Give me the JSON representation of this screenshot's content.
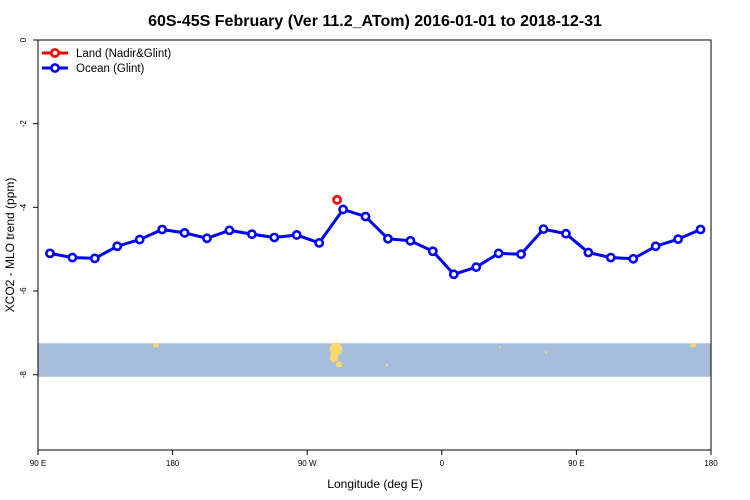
{
  "chart_data": {
    "type": "line",
    "title": "60S-45S February (Ver 11.2_ATom)   2016-01-01 to 2018-12-31",
    "xlabel": "Longitude (deg E)",
    "ylabel": "XCO2 - MLO trend (ppm)",
    "xlim": [
      90,
      540
    ],
    "ylim": [
      0,
      -9.8
    ],
    "x_ticks": [
      {
        "x": 90,
        "label": "90 E"
      },
      {
        "x": 180,
        "label": "180"
      },
      {
        "x": 270,
        "label": "90 W"
      },
      {
        "x": 360,
        "label": "0"
      },
      {
        "x": 450,
        "label": "90 E"
      },
      {
        "x": 540,
        "label": "180"
      }
    ],
    "y_ticks": [
      {
        "y": 0,
        "label": "0"
      },
      {
        "y": -2,
        "label": "-2"
      },
      {
        "y": -4,
        "label": "-4"
      },
      {
        "y": -6,
        "label": "-6"
      },
      {
        "y": -8,
        "label": "-8"
      }
    ],
    "grid": false,
    "legend_position": "top-left",
    "series": [
      {
        "name": "Land (Nadir&Glint)",
        "color": "#ff0000",
        "line": false,
        "points": [
          [
            290,
            -3.82
          ]
        ]
      },
      {
        "name": "Ocean (Glint)",
        "color": "#0000ff",
        "line": true,
        "points": [
          [
            98,
            -5.1
          ],
          [
            113,
            -5.2
          ],
          [
            128,
            -5.22
          ],
          [
            143,
            -4.93
          ],
          [
            158,
            -4.77
          ],
          [
            173,
            -4.53
          ],
          [
            188,
            -4.61
          ],
          [
            203,
            -4.74
          ],
          [
            218,
            -4.55
          ],
          [
            233,
            -4.64
          ],
          [
            248,
            -4.72
          ],
          [
            263,
            -4.66
          ],
          [
            278,
            -4.85
          ],
          [
            294,
            -4.05
          ],
          [
            309,
            -4.22
          ],
          [
            324,
            -4.75
          ],
          [
            339,
            -4.8
          ],
          [
            354,
            -5.05
          ],
          [
            368,
            -5.6
          ],
          [
            383,
            -5.43
          ],
          [
            398,
            -5.1
          ],
          [
            413,
            -5.12
          ],
          [
            428,
            -4.52
          ],
          [
            443,
            -4.63
          ],
          [
            458,
            -5.08
          ],
          [
            473,
            -5.2
          ],
          [
            488,
            -5.23
          ],
          [
            503,
            -4.93
          ],
          [
            518,
            -4.76
          ],
          [
            533,
            -4.53
          ]
        ]
      }
    ],
    "map_strip": {
      "y_range": [
        -7.25,
        -8.05
      ],
      "ocean_color": "#a7bddc",
      "land_color": "#ffd86a"
    }
  }
}
